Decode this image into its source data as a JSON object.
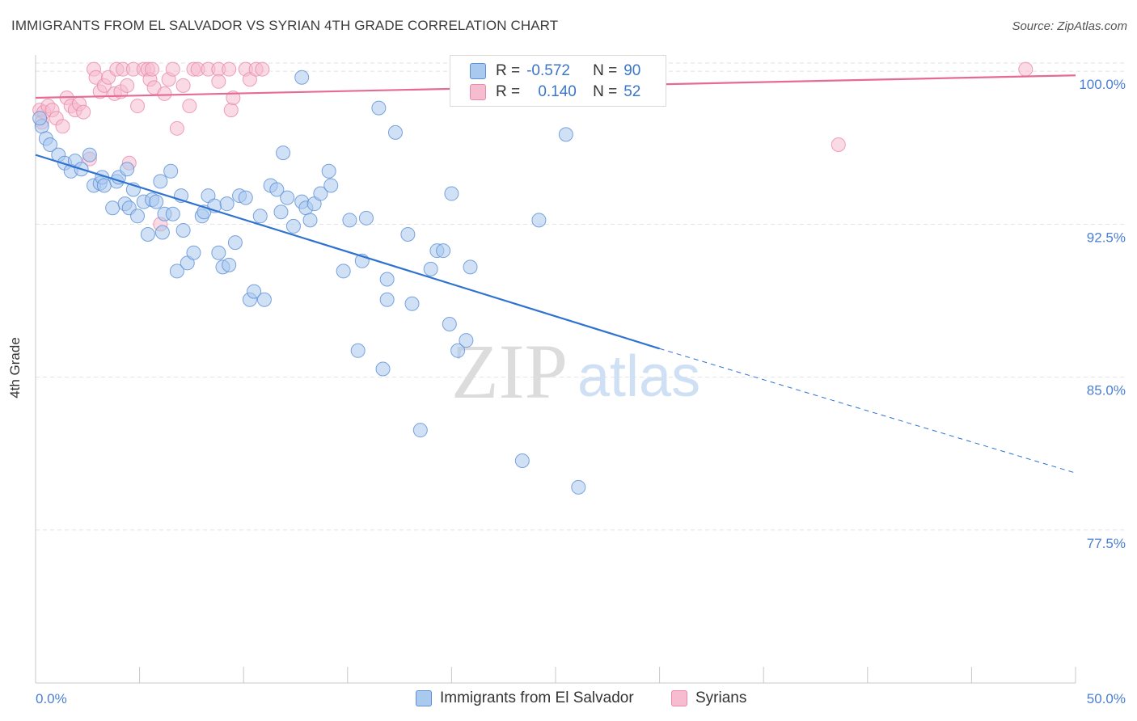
{
  "title": "IMMIGRANTS FROM EL SALVADOR VS SYRIAN 4TH GRADE CORRELATION CHART",
  "source": "Source: ZipAtlas.com",
  "watermark": {
    "zip": "ZIP",
    "atlas": "atlas"
  },
  "colors": {
    "blue_fill": "#a9c9ef",
    "blue_stroke": "#5b8fd6",
    "blue_line": "#2f72d0",
    "pink_fill": "#f6bcd0",
    "pink_stroke": "#e88aa9",
    "pink_line": "#e56b93",
    "tick_label": "#4a7fd0",
    "grid": "#e2e2e2"
  },
  "stats": [
    {
      "r_label": "R =",
      "r_value": "-0.572",
      "n_label": "N =",
      "n_value": "90",
      "swatch": "blue"
    },
    {
      "r_label": "R =",
      "r_value": "0.140",
      "n_label": "N =",
      "n_value": "52",
      "swatch": "pink"
    }
  ],
  "legend": [
    {
      "label": "Immigrants from El Salvador",
      "swatch": "blue"
    },
    {
      "label": "Syrians",
      "swatch": "pink"
    }
  ],
  "chart_data": {
    "type": "scatter",
    "title": "IMMIGRANTS FROM EL SALVADOR VS SYRIAN 4TH GRADE CORRELATION CHART",
    "xlabel": "",
    "ylabel": "4th Grade",
    "xlim": [
      0,
      50
    ],
    "ylim": [
      70.0,
      100.8
    ],
    "x_tick_labels": [
      "0.0%",
      "50.0%"
    ],
    "y_ticks": [
      77.5,
      85.0,
      92.5,
      100.0
    ],
    "y_tick_labels": [
      "77.5%",
      "85.0%",
      "92.5%",
      "100.0%"
    ],
    "grid": true,
    "legend_position": "bottom",
    "series": [
      {
        "name": "Immigrants from El Salvador",
        "color": "#5b8fd6",
        "points": [
          [
            0.3,
            97.3
          ],
          [
            0.5,
            96.7
          ],
          [
            0.7,
            96.4
          ],
          [
            1.1,
            95.9
          ],
          [
            1.4,
            95.5
          ],
          [
            1.7,
            95.1
          ],
          [
            1.9,
            95.6
          ],
          [
            2.2,
            95.2
          ],
          [
            2.6,
            95.9
          ],
          [
            2.8,
            94.4
          ],
          [
            3.1,
            94.5
          ],
          [
            3.2,
            94.8
          ],
          [
            3.3,
            94.4
          ],
          [
            3.7,
            93.3
          ],
          [
            3.9,
            94.6
          ],
          [
            4.0,
            94.8
          ],
          [
            4.3,
            93.5
          ],
          [
            4.4,
            95.2
          ],
          [
            4.5,
            93.3
          ],
          [
            4.7,
            94.2
          ],
          [
            4.9,
            92.9
          ],
          [
            5.2,
            93.6
          ],
          [
            5.4,
            92.0
          ],
          [
            5.6,
            93.7
          ],
          [
            5.8,
            93.6
          ],
          [
            6.0,
            94.6
          ],
          [
            6.1,
            92.1
          ],
          [
            6.2,
            93.0
          ],
          [
            6.5,
            95.1
          ],
          [
            6.6,
            93.0
          ],
          [
            6.8,
            90.2
          ],
          [
            7.0,
            93.9
          ],
          [
            7.1,
            92.2
          ],
          [
            7.3,
            90.6
          ],
          [
            7.6,
            91.1
          ],
          [
            8.0,
            92.9
          ],
          [
            8.1,
            93.1
          ],
          [
            8.3,
            93.9
          ],
          [
            8.6,
            93.4
          ],
          [
            8.8,
            91.1
          ],
          [
            9.0,
            90.4
          ],
          [
            9.2,
            93.5
          ],
          [
            9.3,
            90.5
          ],
          [
            9.6,
            91.6
          ],
          [
            9.8,
            93.9
          ],
          [
            10.1,
            93.8
          ],
          [
            10.3,
            88.8
          ],
          [
            10.5,
            89.2
          ],
          [
            10.8,
            92.9
          ],
          [
            11.0,
            88.8
          ],
          [
            11.3,
            94.4
          ],
          [
            11.6,
            94.2
          ],
          [
            11.8,
            93.1
          ],
          [
            11.9,
            96.0
          ],
          [
            12.1,
            93.8
          ],
          [
            12.4,
            92.4
          ],
          [
            12.8,
            93.6
          ],
          [
            13.0,
            93.3
          ],
          [
            13.2,
            92.7
          ],
          [
            13.4,
            93.5
          ],
          [
            13.7,
            94.0
          ],
          [
            14.1,
            95.1
          ],
          [
            14.2,
            94.4
          ],
          [
            14.8,
            90.2
          ],
          [
            15.1,
            92.7
          ],
          [
            15.5,
            86.3
          ],
          [
            15.7,
            90.7
          ],
          [
            15.9,
            92.8
          ],
          [
            16.5,
            98.2
          ],
          [
            16.7,
            85.4
          ],
          [
            16.9,
            89.8
          ],
          [
            16.9,
            88.8
          ],
          [
            17.3,
            97.0
          ],
          [
            17.9,
            92.0
          ],
          [
            18.1,
            88.6
          ],
          [
            18.5,
            82.4
          ],
          [
            19.0,
            90.3
          ],
          [
            19.3,
            91.2
          ],
          [
            19.6,
            91.2
          ],
          [
            19.9,
            87.6
          ],
          [
            20.0,
            94.0
          ],
          [
            20.3,
            86.3
          ],
          [
            20.7,
            86.8
          ],
          [
            20.9,
            90.4
          ],
          [
            23.4,
            80.9
          ],
          [
            24.2,
            92.7
          ],
          [
            25.5,
            96.9
          ],
          [
            26.1,
            79.6
          ],
          [
            12.8,
            99.7
          ],
          [
            0.2,
            97.7
          ]
        ],
        "trend": {
          "x1": 0.0,
          "y1": 95.9,
          "x2": 30.0,
          "y2": 86.4,
          "dash_to_x": 50.0,
          "dash_to_y": 80.3
        }
      },
      {
        "name": "Syrians",
        "color": "#e88aa9",
        "points": [
          [
            0.2,
            98.1
          ],
          [
            0.3,
            97.5
          ],
          [
            0.4,
            98.0
          ],
          [
            0.6,
            98.3
          ],
          [
            0.8,
            98.1
          ],
          [
            1.0,
            97.7
          ],
          [
            1.3,
            97.3
          ],
          [
            1.5,
            98.7
          ],
          [
            1.7,
            98.3
          ],
          [
            1.9,
            98.1
          ],
          [
            2.1,
            98.4
          ],
          [
            2.3,
            98.0
          ],
          [
            2.6,
            95.7
          ],
          [
            2.8,
            100.1
          ],
          [
            2.9,
            99.7
          ],
          [
            3.1,
            99.0
          ],
          [
            3.3,
            99.3
          ],
          [
            3.5,
            99.7
          ],
          [
            3.8,
            98.9
          ],
          [
            3.9,
            100.1
          ],
          [
            4.1,
            99.0
          ],
          [
            4.2,
            100.1
          ],
          [
            4.4,
            99.3
          ],
          [
            4.5,
            95.5
          ],
          [
            4.7,
            100.1
          ],
          [
            4.9,
            98.3
          ],
          [
            5.2,
            100.1
          ],
          [
            5.4,
            100.1
          ],
          [
            5.5,
            99.6
          ],
          [
            5.6,
            100.1
          ],
          [
            5.7,
            99.2
          ],
          [
            6.0,
            92.5
          ],
          [
            6.2,
            98.9
          ],
          [
            6.4,
            99.6
          ],
          [
            6.6,
            100.1
          ],
          [
            6.8,
            97.2
          ],
          [
            7.1,
            99.3
          ],
          [
            7.4,
            98.3
          ],
          [
            7.6,
            100.1
          ],
          [
            7.8,
            100.1
          ],
          [
            8.3,
            100.1
          ],
          [
            8.8,
            100.1
          ],
          [
            8.8,
            99.5
          ],
          [
            9.3,
            100.1
          ],
          [
            9.4,
            98.1
          ],
          [
            9.5,
            98.7
          ],
          [
            10.1,
            100.1
          ],
          [
            10.3,
            99.6
          ],
          [
            10.6,
            100.1
          ],
          [
            10.9,
            100.1
          ],
          [
            38.6,
            96.4
          ],
          [
            47.6,
            100.1
          ]
        ],
        "trend": {
          "x1": 0.0,
          "y1": 98.7,
          "x2": 50.0,
          "y2": 99.8
        }
      }
    ]
  }
}
